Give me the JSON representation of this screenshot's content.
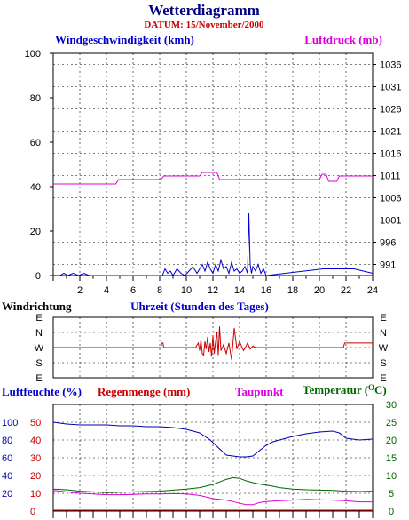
{
  "header": {
    "title": "Wetterdiagramm",
    "date": "DATUM: 15/November/2000"
  },
  "colors": {
    "wind_speed": "#0000cc",
    "pressure": "#dd00dd",
    "direction": "#cc0000",
    "humidity": "#0000aa",
    "rain": "#cc0000",
    "dewpoint": "#dd00dd",
    "temperature": "#006600",
    "title": "#000080",
    "date": "#cc0000"
  },
  "chart_data": [
    {
      "type": "line",
      "labels": {
        "left": "Windgeschwindigkeit (kmh)",
        "right": "Luftdruck (mb)"
      },
      "xlim": [
        0,
        24
      ],
      "xticks": [
        "2",
        "4",
        "6",
        "8",
        "10",
        "12",
        "14",
        "16",
        "18",
        "20",
        "22",
        "24"
      ],
      "ylim_left": [
        0,
        100
      ],
      "yticks_left": [
        "0",
        "20",
        "40",
        "60",
        "80",
        "100"
      ],
      "ylim_right": [
        988.5,
        1038.5
      ],
      "yticks_right": [
        "991",
        "996",
        "1001",
        "1006",
        "1011",
        "1016",
        "1021",
        "1026",
        "1031",
        "1036"
      ],
      "grid": true,
      "series": [
        {
          "name": "Windgeschwindigkeit (kmh)",
          "axis": "left",
          "x": [
            0.5,
            0.8,
            1.1,
            1.5,
            1.9,
            2.3,
            2.7,
            3.4,
            8.2,
            8.4,
            8.6,
            8.8,
            9.0,
            9.3,
            9.6,
            9.9,
            10.2,
            10.5,
            10.8,
            11.0,
            11.2,
            11.4,
            11.6,
            11.8,
            12.0,
            12.2,
            12.4,
            12.6,
            12.8,
            13.0,
            13.2,
            13.4,
            13.6,
            13.8,
            14.0,
            14.2,
            14.4,
            14.6,
            14.7,
            14.8,
            14.9,
            15.0,
            15.2,
            15.4,
            15.6,
            15.8,
            16.0,
            20.3,
            22.6,
            24.0
          ],
          "y": [
            0,
            1,
            0,
            1,
            0,
            1,
            0,
            0,
            0,
            3,
            1,
            2,
            0,
            3,
            1,
            0,
            2,
            4,
            1,
            3,
            5,
            2,
            6,
            3,
            1,
            5,
            2,
            7,
            3,
            4,
            1,
            6,
            2,
            3,
            1,
            2,
            4,
            1,
            28,
            5,
            1,
            4,
            2,
            5,
            1,
            3,
            0,
            3,
            3,
            1
          ]
        },
        {
          "name": "Luftdruck (mb)",
          "axis": "right",
          "x": [
            0.0,
            4.7,
            4.9,
            8.1,
            8.3,
            11.0,
            11.2,
            12.3,
            12.5,
            15.3,
            15.5,
            20.0,
            20.2,
            20.5,
            20.7,
            21.3,
            21.5,
            24.0
          ],
          "y": [
            1009.1,
            1009.1,
            1010.1,
            1010.1,
            1010.9,
            1010.9,
            1011.7,
            1011.7,
            1010.1,
            1010.1,
            1010.1,
            1010.1,
            1011.3,
            1011.3,
            1009.7,
            1009.7,
            1010.9,
            1010.9
          ]
        }
      ]
    },
    {
      "type": "line",
      "labels": {
        "left": "Windrichtung",
        "center": "Uhrzeit (Stunden des Tages)"
      },
      "xlim": [
        0,
        24
      ],
      "yticks": [
        "E",
        "N",
        "W",
        "S",
        "E"
      ],
      "grid": true,
      "series": [
        {
          "name": "Windrichtung",
          "x": [
            0,
            8.1,
            8.15,
            8.25,
            8.3,
            10.7,
            10.9,
            11.0,
            11.1,
            11.2,
            11.3,
            11.4,
            11.5,
            11.6,
            11.7,
            11.8,
            11.9,
            12.0,
            12.1,
            12.2,
            12.3,
            12.4,
            12.5,
            12.6,
            12.8,
            13.0,
            13.2,
            13.4,
            13.6,
            13.8,
            14.0,
            14.3,
            14.5,
            14.6,
            14.8,
            15.0,
            15.2,
            15.5,
            21.8,
            21.9,
            24.0
          ],
          "y": [
            2,
            2,
            2.3,
            2.3,
            2,
            2,
            2.3,
            1.8,
            2.5,
            1.6,
            1.5,
            2.4,
            1.9,
            2.7,
            1.7,
            2.3,
            1.4,
            2.8,
            1.6,
            2.4,
            3,
            1.5,
            3.4,
            1.8,
            2.2,
            1.6,
            2.3,
            1.2,
            3.3,
            1.9,
            2.4,
            1.8,
            2.1,
            2.3,
            1.9,
            2.1,
            2,
            2,
            2,
            2.3,
            2.3
          ]
        }
      ]
    },
    {
      "type": "line",
      "labels": {
        "humidity": "Luftfeuchte (%)",
        "rain": "Regenmenge (mm)",
        "dewpoint": "Taupunkt",
        "temperature": "Temperatur (",
        "temperature_unit": "O",
        "temperature_close": "C)"
      },
      "xlim": [
        0,
        24
      ],
      "ylim_humidity": [
        0,
        120
      ],
      "yticks_humidity": [
        "20",
        "40",
        "60",
        "80",
        "100"
      ],
      "ylim_rain": [
        0,
        60
      ],
      "yticks_rain": [
        "0",
        "10",
        "20",
        "30",
        "40",
        "50"
      ],
      "ylim_temperature": [
        0,
        30
      ],
      "yticks_temperature": [
        "0",
        "5",
        "10",
        "15",
        "20",
        "25",
        "30"
      ],
      "grid": true,
      "series": [
        {
          "name": "Luftfeuchte (%)",
          "axis": "humidity",
          "x": [
            0,
            1,
            2,
            3,
            4,
            5,
            6,
            7,
            8,
            9,
            10,
            11,
            11.8,
            12.5,
            13,
            13.5,
            14,
            14.5,
            15,
            15.5,
            16,
            16.5,
            17,
            17.5,
            18,
            19,
            20,
            21,
            21.5,
            22,
            23,
            24
          ],
          "y": [
            100,
            98,
            97,
            97,
            97,
            96,
            96,
            95,
            95,
            94,
            92,
            88,
            80,
            70,
            63,
            62,
            61,
            61,
            62,
            68,
            74,
            78,
            80,
            82,
            84,
            87,
            89,
            90,
            88,
            82,
            80,
            81
          ]
        },
        {
          "name": "Taupunkt",
          "axis": "temperature",
          "x": [
            0,
            1,
            2,
            3,
            4,
            5,
            6,
            7,
            8,
            9,
            10,
            11,
            12,
            12.5,
            13,
            13.5,
            14,
            14.5,
            15,
            15.5,
            16,
            16.5,
            17,
            18,
            19,
            20,
            21,
            22,
            23,
            24
          ],
          "y": [
            5.8,
            5.4,
            5.0,
            4.8,
            4.6,
            4.6,
            4.7,
            4.8,
            4.8,
            4.9,
            4.8,
            4.4,
            3.5,
            3.3,
            3.1,
            2.7,
            2.2,
            1.8,
            1.8,
            2.4,
            2.7,
            2.8,
            2.9,
            3.1,
            3.3,
            3.2,
            3.1,
            2.9,
            2.6,
            2.6
          ]
        },
        {
          "name": "Temperatur",
          "axis": "temperature",
          "x": [
            0,
            1,
            2,
            3,
            4,
            5,
            6,
            7,
            8,
            9,
            10,
            11,
            12,
            12.5,
            13,
            13.5,
            14,
            14.5,
            15,
            15.5,
            16,
            16.5,
            17,
            18,
            19,
            20,
            21,
            22,
            23,
            24
          ],
          "y": [
            6.2,
            6.0,
            5.6,
            5.4,
            5.2,
            5.3,
            5.4,
            5.5,
            5.6,
            5.9,
            6.2,
            6.6,
            7.5,
            8.2,
            8.9,
            9.4,
            9.2,
            8.5,
            8.0,
            7.6,
            7.3,
            7.0,
            6.6,
            6.2,
            6.0,
            5.9,
            5.8,
            5.6,
            5.5,
            5.6
          ]
        },
        {
          "name": "Regenmenge (mm)",
          "axis": "rain",
          "x": [
            0,
            24
          ],
          "y": [
            0,
            0
          ]
        }
      ]
    }
  ]
}
